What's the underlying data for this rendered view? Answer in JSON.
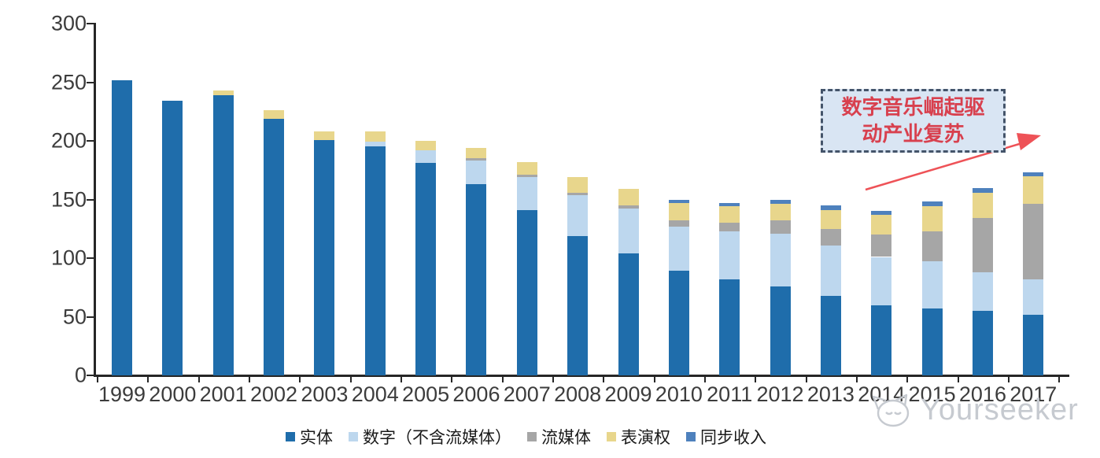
{
  "chart_data": {
    "type": "bar",
    "stacked": true,
    "title": "",
    "xlabel": "",
    "ylabel": "",
    "ylim": [
      0,
      300
    ],
    "yticks": [
      0,
      50,
      100,
      150,
      200,
      250,
      300
    ],
    "grid": false,
    "legend_position": "bottom",
    "categories": [
      "1999",
      "2000",
      "2001",
      "2002",
      "2003",
      "2004",
      "2005",
      "2006",
      "2007",
      "2008",
      "2009",
      "2010",
      "2011",
      "2012",
      "2013",
      "2014",
      "2015",
      "2016",
      "2017"
    ],
    "series": [
      {
        "key": "physical",
        "name": "实体",
        "color": "#1f6dab",
        "values": [
          252,
          234,
          239,
          219,
          201,
          195,
          181,
          163,
          141,
          119,
          104,
          89,
          82,
          76,
          68,
          60,
          57,
          55,
          52
        ]
      },
      {
        "key": "digital-ex-streaming",
        "name": "数字（不含流媒体）",
        "color": "#bdd7ee",
        "values": [
          0,
          0,
          0,
          0,
          0,
          4,
          11,
          20,
          28,
          35,
          38,
          38,
          41,
          45,
          43,
          41,
          40,
          33,
          30
        ]
      },
      {
        "key": "streaming",
        "name": "流媒体",
        "color": "#a6a6a6",
        "values": [
          0,
          0,
          0,
          0,
          0,
          0,
          0,
          2,
          2,
          2,
          3,
          5,
          7,
          11,
          14,
          19,
          26,
          46,
          64
        ]
      },
      {
        "key": "performance-rights",
        "name": "表演权",
        "color": "#e8d68c",
        "values": [
          0,
          0,
          4,
          7,
          7,
          9,
          8,
          9,
          11,
          13,
          14,
          15,
          14,
          14,
          16,
          17,
          21,
          22,
          24
        ]
      },
      {
        "key": "sync-revenue",
        "name": "同步收入",
        "color": "#4e81bd",
        "values": [
          0,
          0,
          0,
          0,
          0,
          0,
          0,
          0,
          0,
          0,
          0,
          3,
          3,
          4,
          4,
          3,
          4,
          4,
          3
        ]
      }
    ]
  },
  "annotation": {
    "line1": "数字音乐崛起驱",
    "line2": "动产业复苏",
    "text_color": "#d8404e",
    "box_fill": "#d9e5f3",
    "box_border_color": "#44546a",
    "arrow_color": "#ee5257"
  },
  "watermark": {
    "text": "Yourseeker",
    "color": "#c6cad0",
    "logo": "cat-logo-icon"
  }
}
